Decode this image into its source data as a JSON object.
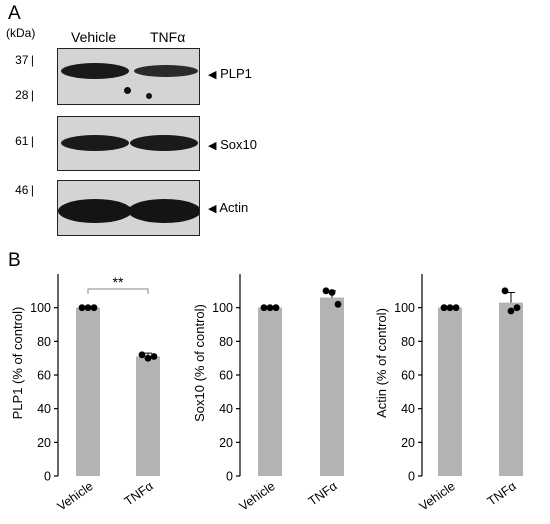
{
  "panel_a": {
    "letter": "A",
    "kda_label": "(kDa)",
    "lanes": [
      "Vehicle",
      "TNFα"
    ],
    "blots": [
      {
        "name": "PLP1",
        "markers": [
          "37",
          "28"
        ]
      },
      {
        "name": "Sox10",
        "markers": [
          "61"
        ]
      },
      {
        "name": "Actin",
        "markers": [
          "46"
        ]
      }
    ],
    "arrow_glyph": "◀"
  },
  "panel_b": {
    "letter": "B"
  },
  "chart_data": [
    {
      "type": "bar",
      "categories": [
        "Vehicle",
        "TNFα"
      ],
      "values": [
        100,
        71
      ],
      "error_upper": [
        100,
        73
      ],
      "points": [
        [
          100,
          100,
          100
        ],
        [
          72,
          70,
          71
        ]
      ],
      "ylabel": "PLP1 (% of control)",
      "ylim": [
        0,
        120
      ],
      "yticks": [
        0,
        20,
        40,
        60,
        80,
        100
      ],
      "significance": "**",
      "bar_color": "#b3b3b3"
    },
    {
      "type": "bar",
      "categories": [
        "Vehicle",
        "TNFα"
      ],
      "values": [
        100,
        106
      ],
      "error_upper": [
        100,
        110
      ],
      "points": [
        [
          100,
          100,
          100
        ],
        [
          110,
          109,
          102
        ]
      ],
      "ylabel": "Sox10 (% of control)",
      "ylim": [
        0,
        120
      ],
      "yticks": [
        0,
        20,
        40,
        60,
        80,
        100
      ],
      "bar_color": "#b3b3b3"
    },
    {
      "type": "bar",
      "categories": [
        "Vehicle",
        "TNFα"
      ],
      "values": [
        100,
        103
      ],
      "error_upper": [
        100,
        109
      ],
      "points": [
        [
          100,
          100,
          100
        ],
        [
          110,
          98,
          100
        ]
      ],
      "ylabel": "Actin (% of control)",
      "ylim": [
        0,
        120
      ],
      "yticks": [
        0,
        20,
        40,
        60,
        80,
        100
      ],
      "bar_color": "#b3b3b3"
    }
  ]
}
